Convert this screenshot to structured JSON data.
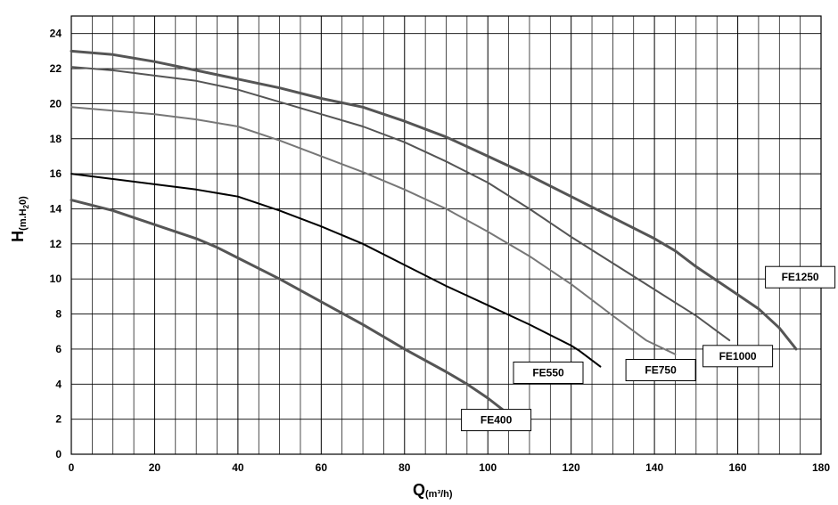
{
  "chart_data": {
    "type": "line",
    "xlabel": {
      "main": "Q",
      "sub": "(m³/h)"
    },
    "ylabel": {
      "main": "H",
      "sub": "(m.H",
      "sub_index": "2",
      "sub_end": "0)"
    },
    "xlim": [
      0,
      180
    ],
    "ylim": [
      0,
      25
    ],
    "x_ticks": [
      0,
      20,
      40,
      60,
      80,
      100,
      120,
      140,
      160,
      180
    ],
    "y_ticks": [
      0,
      2,
      4,
      6,
      8,
      10,
      12,
      14,
      16,
      18,
      20,
      22,
      24
    ],
    "x_minor_step": 5,
    "y_minor_step": 2,
    "grid": true,
    "series": [
      {
        "name": "FE400",
        "color": "#555555",
        "width": 3,
        "points": [
          [
            0,
            14.5
          ],
          [
            10,
            13.9
          ],
          [
            20,
            13.1
          ],
          [
            30,
            12.3
          ],
          [
            35,
            11.8
          ],
          [
            40,
            11.2
          ],
          [
            50,
            10.0
          ],
          [
            60,
            8.7
          ],
          [
            70,
            7.4
          ],
          [
            80,
            6.0
          ],
          [
            90,
            4.7
          ],
          [
            95,
            4.0
          ],
          [
            100,
            3.2
          ],
          [
            106.5,
            2.0
          ]
        ]
      },
      {
        "name": "FE550",
        "color": "#000000",
        "width": 2,
        "points": [
          [
            0,
            16.0
          ],
          [
            10,
            15.7
          ],
          [
            20,
            15.4
          ],
          [
            30,
            15.1
          ],
          [
            40,
            14.7
          ],
          [
            50,
            13.9
          ],
          [
            60,
            13.0
          ],
          [
            70,
            12.0
          ],
          [
            80,
            10.8
          ],
          [
            90,
            9.6
          ],
          [
            100,
            8.5
          ],
          [
            110,
            7.4
          ],
          [
            120,
            6.2
          ],
          [
            122,
            5.9
          ],
          [
            127,
            5.0
          ]
        ]
      },
      {
        "name": "FE750",
        "color": "#777777",
        "width": 2,
        "points": [
          [
            0,
            19.8
          ],
          [
            10,
            19.6
          ],
          [
            20,
            19.4
          ],
          [
            30,
            19.1
          ],
          [
            40,
            18.7
          ],
          [
            50,
            17.9
          ],
          [
            60,
            17.0
          ],
          [
            70,
            16.1
          ],
          [
            80,
            15.1
          ],
          [
            90,
            14.0
          ],
          [
            100,
            12.7
          ],
          [
            110,
            11.3
          ],
          [
            120,
            9.7
          ],
          [
            130,
            7.9
          ],
          [
            138,
            6.5
          ],
          [
            145,
            5.7
          ]
        ]
      },
      {
        "name": "FE1000",
        "color": "#555555",
        "width": 2,
        "points": [
          [
            0,
            22.1
          ],
          [
            10,
            21.9
          ],
          [
            20,
            21.6
          ],
          [
            30,
            21.3
          ],
          [
            40,
            20.8
          ],
          [
            50,
            20.1
          ],
          [
            60,
            19.4
          ],
          [
            70,
            18.7
          ],
          [
            80,
            17.8
          ],
          [
            90,
            16.7
          ],
          [
            100,
            15.5
          ],
          [
            110,
            14.0
          ],
          [
            120,
            12.4
          ],
          [
            130,
            10.9
          ],
          [
            140,
            9.4
          ],
          [
            150,
            7.9
          ],
          [
            158,
            6.5
          ]
        ]
      },
      {
        "name": "FE1250",
        "color": "#555555",
        "width": 3,
        "points": [
          [
            0,
            23.0
          ],
          [
            10,
            22.8
          ],
          [
            20,
            22.4
          ],
          [
            30,
            21.9
          ],
          [
            40,
            21.4
          ],
          [
            50,
            20.9
          ],
          [
            60,
            20.3
          ],
          [
            70,
            19.8
          ],
          [
            80,
            19.0
          ],
          [
            90,
            18.1
          ],
          [
            100,
            17.0
          ],
          [
            110,
            15.9
          ],
          [
            120,
            14.7
          ],
          [
            130,
            13.5
          ],
          [
            140,
            12.3
          ],
          [
            145,
            11.6
          ],
          [
            150,
            10.7
          ],
          [
            160,
            9.1
          ],
          [
            165,
            8.3
          ],
          [
            170,
            7.2
          ],
          [
            174,
            6.0
          ]
        ]
      }
    ],
    "labels": [
      {
        "text": "FE400",
        "series": "FE400",
        "x": 102,
        "y": 1.95
      },
      {
        "text": "FE550",
        "series": "FE550",
        "x": 114.5,
        "y": 4.65
      },
      {
        "text": "FE750",
        "series": "FE750",
        "x": 141.5,
        "y": 4.8
      },
      {
        "text": "FE1000",
        "series": "FE1000",
        "x": 160,
        "y": 5.6
      },
      {
        "text": "FE1250",
        "series": "FE1250",
        "x": 175,
        "y": 10.1
      }
    ]
  }
}
